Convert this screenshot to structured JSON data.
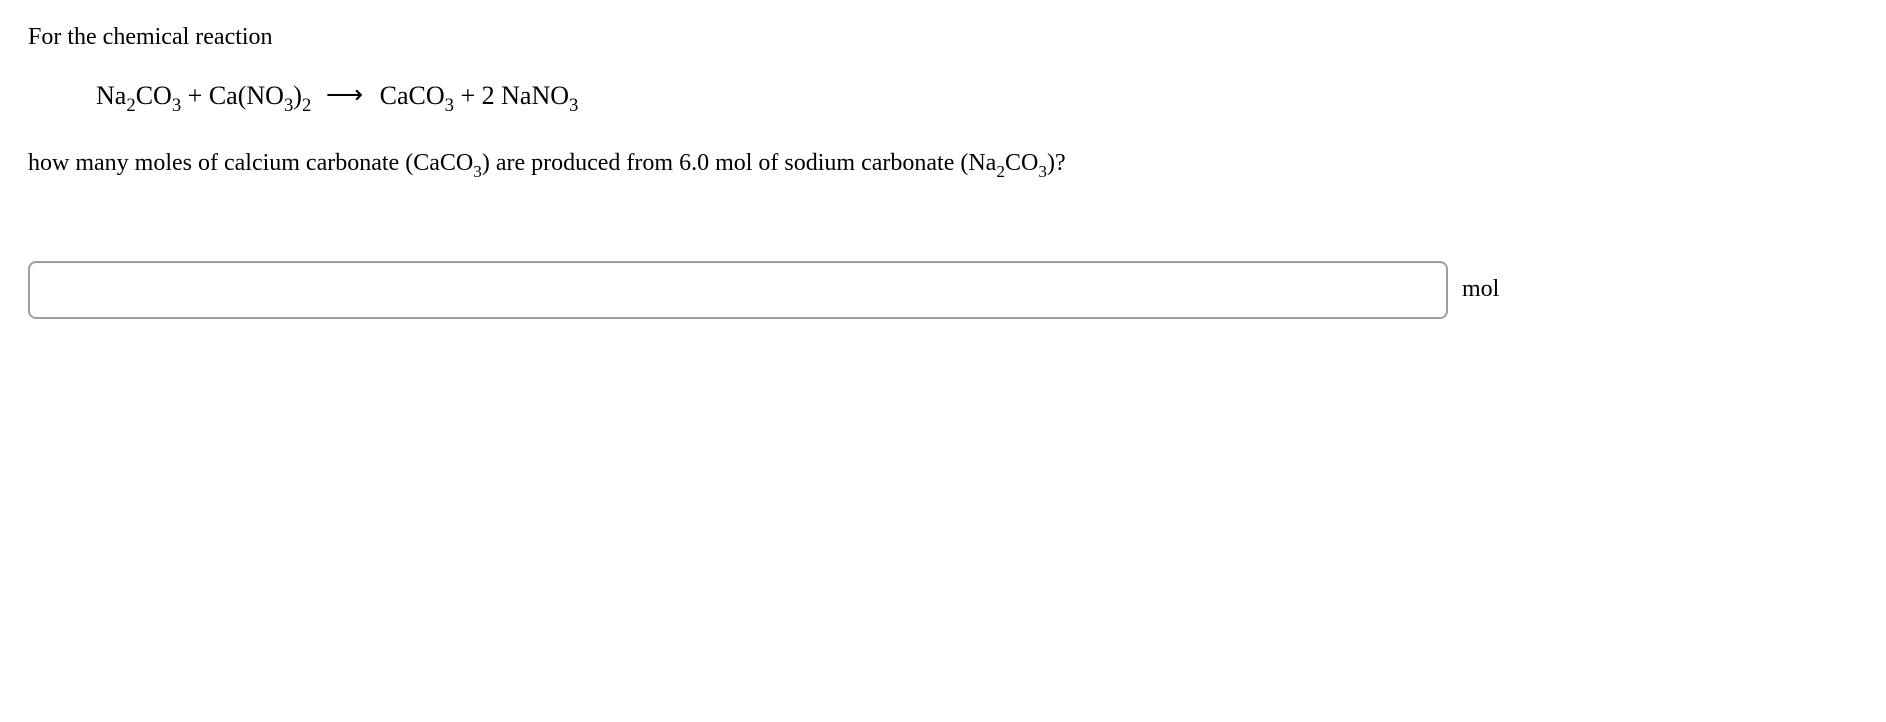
{
  "intro_text": "For the chemical reaction",
  "equation": {
    "lhs1": {
      "pre": "Na",
      "sub1": "2",
      "mid": "CO",
      "sub2": "3"
    },
    "plus1": " + ",
    "lhs2": {
      "pre": "Ca(NO",
      "sub1": "3",
      "mid": ")",
      "sub2": "2"
    },
    "arrow": "⟶",
    "rhs1": {
      "pre": "CaCO",
      "sub1": "3"
    },
    "plus2": " + ",
    "rhs2": {
      "coef": "2 ",
      "pre": "NaNO",
      "sub1": "3"
    }
  },
  "question": {
    "pre": "how many moles of calcium carbonate (CaCO",
    "q_sub1": "3",
    "mid": ") are produced from 6.0 mol of sodium carbonate (Na",
    "q_sub2": "2",
    "mid2": "CO",
    "q_sub3": "3",
    "end": ")?"
  },
  "answer": {
    "value": "",
    "unit": "mol"
  }
}
